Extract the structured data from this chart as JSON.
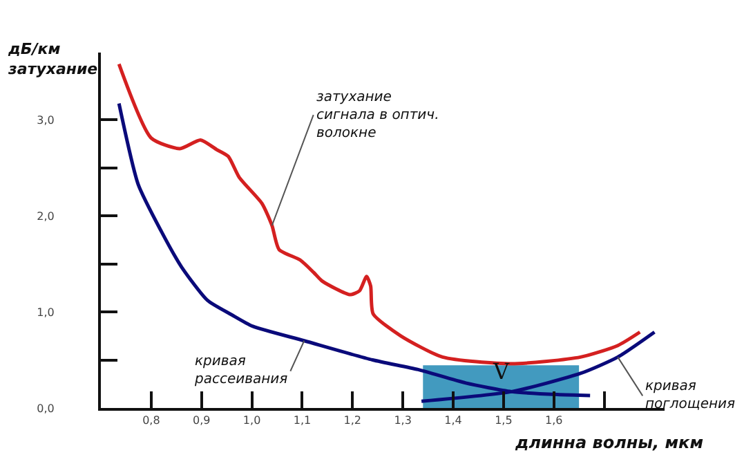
{
  "chart_data": {
    "type": "line",
    "xlabel": "длинна волны, мкм",
    "ylabel": "дБ/км\nзатухание",
    "xlim": [
      0.7,
      1.82
    ],
    "ylim": [
      0,
      3.7
    ],
    "xticks": [
      {
        "value": 0.8,
        "label": "0,8"
      },
      {
        "value": 0.9,
        "label": "0,9"
      },
      {
        "value": 1.0,
        "label": "1,0"
      },
      {
        "value": 1.1,
        "label": "1,1"
      },
      {
        "value": 1.2,
        "label": "1,2"
      },
      {
        "value": 1.3,
        "label": "1,3"
      },
      {
        "value": 1.4,
        "label": "1,4"
      },
      {
        "value": 1.5,
        "label": "1,5"
      },
      {
        "value": 1.6,
        "label": "1,6"
      },
      {
        "value": 1.7,
        "label": null
      }
    ],
    "yticks": [
      {
        "value": 0,
        "label": "0,0"
      },
      {
        "value": 0.5,
        "label": null
      },
      {
        "value": 1,
        "label": "1,0"
      },
      {
        "value": 1.5,
        "label": null
      },
      {
        "value": 2,
        "label": "2,0"
      },
      {
        "value": 2.5,
        "label": null
      },
      {
        "value": 3,
        "label": "3,0"
      }
    ],
    "marker": "none",
    "line_style": "solid",
    "series": [
      {
        "color": "#d42020",
        "x": [
          0.736,
          0.8,
          0.857,
          0.898,
          0.93,
          0.953,
          0.975,
          1.02,
          1.04,
          1.054,
          1.096,
          1.123,
          1.14,
          1.195,
          1.214,
          1.228,
          1.236,
          1.241,
          1.296,
          1.379,
          1.516,
          1.653,
          1.727,
          1.771
        ],
        "values": [
          3.58,
          2.81,
          2.7,
          2.79,
          2.69,
          2.62,
          2.4,
          2.13,
          1.9,
          1.65,
          1.54,
          1.41,
          1.32,
          1.18,
          1.22,
          1.37,
          1.27,
          0.98,
          0.75,
          0.53,
          0.46,
          0.53,
          0.65,
          0.79
        ]
      },
      {
        "color": "#0a0a7a",
        "x": [
          0.736,
          0.774,
          0.82,
          0.86,
          0.912,
          0.96,
          1.002,
          1.104,
          1.24,
          1.33,
          1.425,
          1.516,
          1.607,
          1.672
        ],
        "values": [
          3.17,
          2.33,
          1.84,
          1.47,
          1.12,
          0.97,
          0.85,
          0.7,
          0.5,
          0.4,
          0.26,
          0.17,
          0.14,
          0.13
        ]
      },
      {
        "color": "#0a0a7a",
        "x": [
          1.337,
          1.516,
          1.653,
          1.727,
          1.8
        ],
        "values": [
          0.07,
          0.17,
          0.36,
          0.53,
          0.79
        ]
      }
    ],
    "bands": [
      {
        "axis": "x",
        "from": 1.34,
        "to": 1.65,
        "color": "#2e8fb8",
        "label": "V"
      }
    ],
    "annotations": [
      {
        "text": "затухание\nсигнала в оптич.\nволокне",
        "x": 1.04,
        "y": 1.9
      },
      {
        "text": "кривая\nрассеивания",
        "x": 1.104,
        "y": 0.7
      },
      {
        "text": "кривая\nпоглощения",
        "x": 1.727,
        "y": 0.53
      }
    ]
  }
}
